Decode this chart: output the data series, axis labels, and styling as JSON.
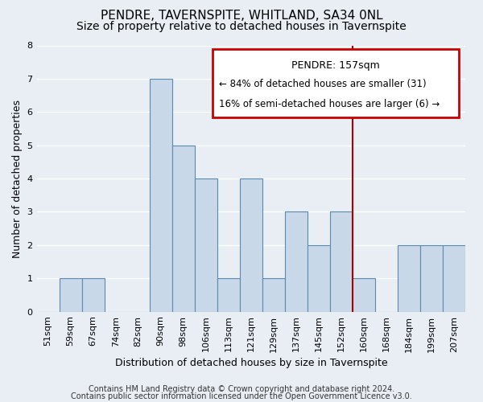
{
  "title1": "PENDRE, TAVERNSPITE, WHITLAND, SA34 0NL",
  "title2": "Size of property relative to detached houses in Tavernspite",
  "xlabel": "Distribution of detached houses by size in Tavernspite",
  "ylabel": "Number of detached properties",
  "categories": [
    "51sqm",
    "59sqm",
    "67sqm",
    "74sqm",
    "82sqm",
    "90sqm",
    "98sqm",
    "106sqm",
    "113sqm",
    "121sqm",
    "129sqm",
    "137sqm",
    "145sqm",
    "152sqm",
    "160sqm",
    "168sqm",
    "184sqm",
    "199sqm",
    "207sqm"
  ],
  "values": [
    0,
    1,
    1,
    0,
    0,
    7,
    5,
    4,
    1,
    4,
    1,
    3,
    2,
    3,
    1,
    0,
    2,
    2,
    2
  ],
  "bar_color": "#c8d8e8",
  "bar_edge_color": "#5a8ab0",
  "bg_color": "#e8eef4",
  "grid_color": "#ffffff",
  "vline_color": "#aa0000",
  "annotation_title": "PENDRE: 157sqm",
  "annotation_line1": "← 84% of detached houses are smaller (31)",
  "annotation_line2": "16% of semi-detached houses are larger (6) →",
  "annotation_box_color": "#cc0000",
  "footer1": "Contains HM Land Registry data © Crown copyright and database right 2024.",
  "footer2": "Contains public sector information licensed under the Open Government Licence v3.0.",
  "ylim": [
    0,
    8
  ],
  "yticks": [
    0,
    1,
    2,
    3,
    4,
    5,
    6,
    7,
    8
  ],
  "title1_fontsize": 11,
  "title2_fontsize": 10,
  "xlabel_fontsize": 9,
  "ylabel_fontsize": 9,
  "tick_fontsize": 8,
  "footer_fontsize": 7,
  "vline_index": 14
}
